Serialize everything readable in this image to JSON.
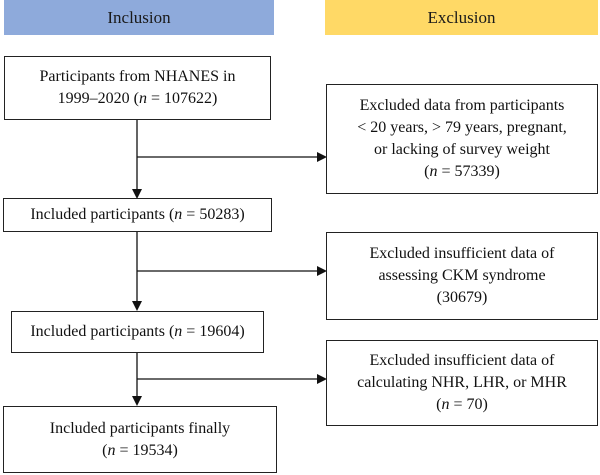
{
  "headers": {
    "inclusion": "Inclusion",
    "exclusion": "Exclusion"
  },
  "boxes": {
    "start": {
      "line1": "Participants from NHANES in",
      "line2_prefix": "1999–2020 (",
      "n": "n",
      "line2_suffix": " = 107622)"
    },
    "included1": {
      "prefix": "Included participants (",
      "n": "n",
      "suffix": " = 50283)"
    },
    "included2": {
      "prefix": "Included participants (",
      "n": "n",
      "suffix": " = 19604)"
    },
    "final": {
      "line1": "Included participants finally",
      "line2_prefix": "(",
      "n": "n",
      "line2_suffix": " = 19534)"
    },
    "excluded1": {
      "line1": "Excluded data from participants",
      "line2": "< 20 years, > 79 years, pregnant,",
      "line3": "or lacking of survey weight",
      "line4_prefix": "(",
      "n": "n",
      "line4_suffix": " = 57339)"
    },
    "excluded2": {
      "line1": "Excluded insufficient data of",
      "line2": "assessing CKM syndrome",
      "line3": "(30679)"
    },
    "excluded3": {
      "line1": "Excluded insufficient data of",
      "line2": "calculating NHR, LHR, or MHR",
      "line3_prefix": "(",
      "n": "n",
      "line3_suffix": " = 70)"
    }
  }
}
